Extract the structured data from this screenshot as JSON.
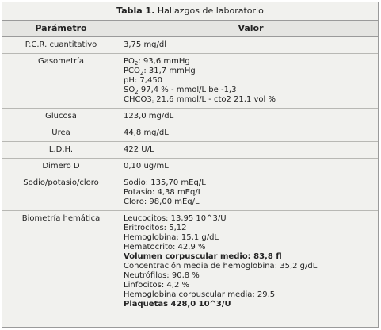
{
  "title": {
    "prefix": "Tabla 1.",
    "text": " Hallazgos de laboratorio"
  },
  "columns": {
    "param": "Parámetro",
    "value": "Valor"
  },
  "rows": [
    {
      "param": "P.C.R. cuantitativo",
      "values": [
        "3,75 mg/dl"
      ]
    },
    {
      "param": "Gasometría",
      "values": [
        "PO2: 93,6 mmHg",
        "PCO2: 31,7 mmHg",
        "pH: 7,450",
        "SO2 97,4 % - mmol/L be -1,3",
        "CHCO3: 21,6 mmol/L - cto2 21,1 vol %"
      ]
    },
    {
      "param": "Glucosa",
      "values": [
        "123,0 mg/dL"
      ]
    },
    {
      "param": "Urea",
      "values": [
        "44,8 mg/dL"
      ]
    },
    {
      "param": "L.D.H.",
      "values": [
        "422 U/L"
      ]
    },
    {
      "param": "Dimero D",
      "values": [
        "0,10 ug/mL"
      ]
    },
    {
      "param": "Sodio/potasio/cloro",
      "values": [
        "Sodio: 135,70 mEq/L",
        "Potasio: 4,38 mEq/L",
        "Cloro: 98,00 mEq/L"
      ]
    },
    {
      "param": "Biometría hemática",
      "values": [
        "Leucocitos: 13,95 10^3/U",
        "Eritrocitos: 5,12",
        "Hemoglobina: 15,1 g/dL",
        "Hematocrito: 42,9 %",
        "Volumen corpuscular medio: 83,8 fl",
        "Concentración media de hemoglobina: 35,2 g/dL",
        "Neutrófilos: 90,8 %",
        "Linfocitos: 4,2 %",
        "Hemoglobina corpuscular media: 29,5",
        "Plaquetas 428,0 10^3/U"
      ]
    }
  ]
}
